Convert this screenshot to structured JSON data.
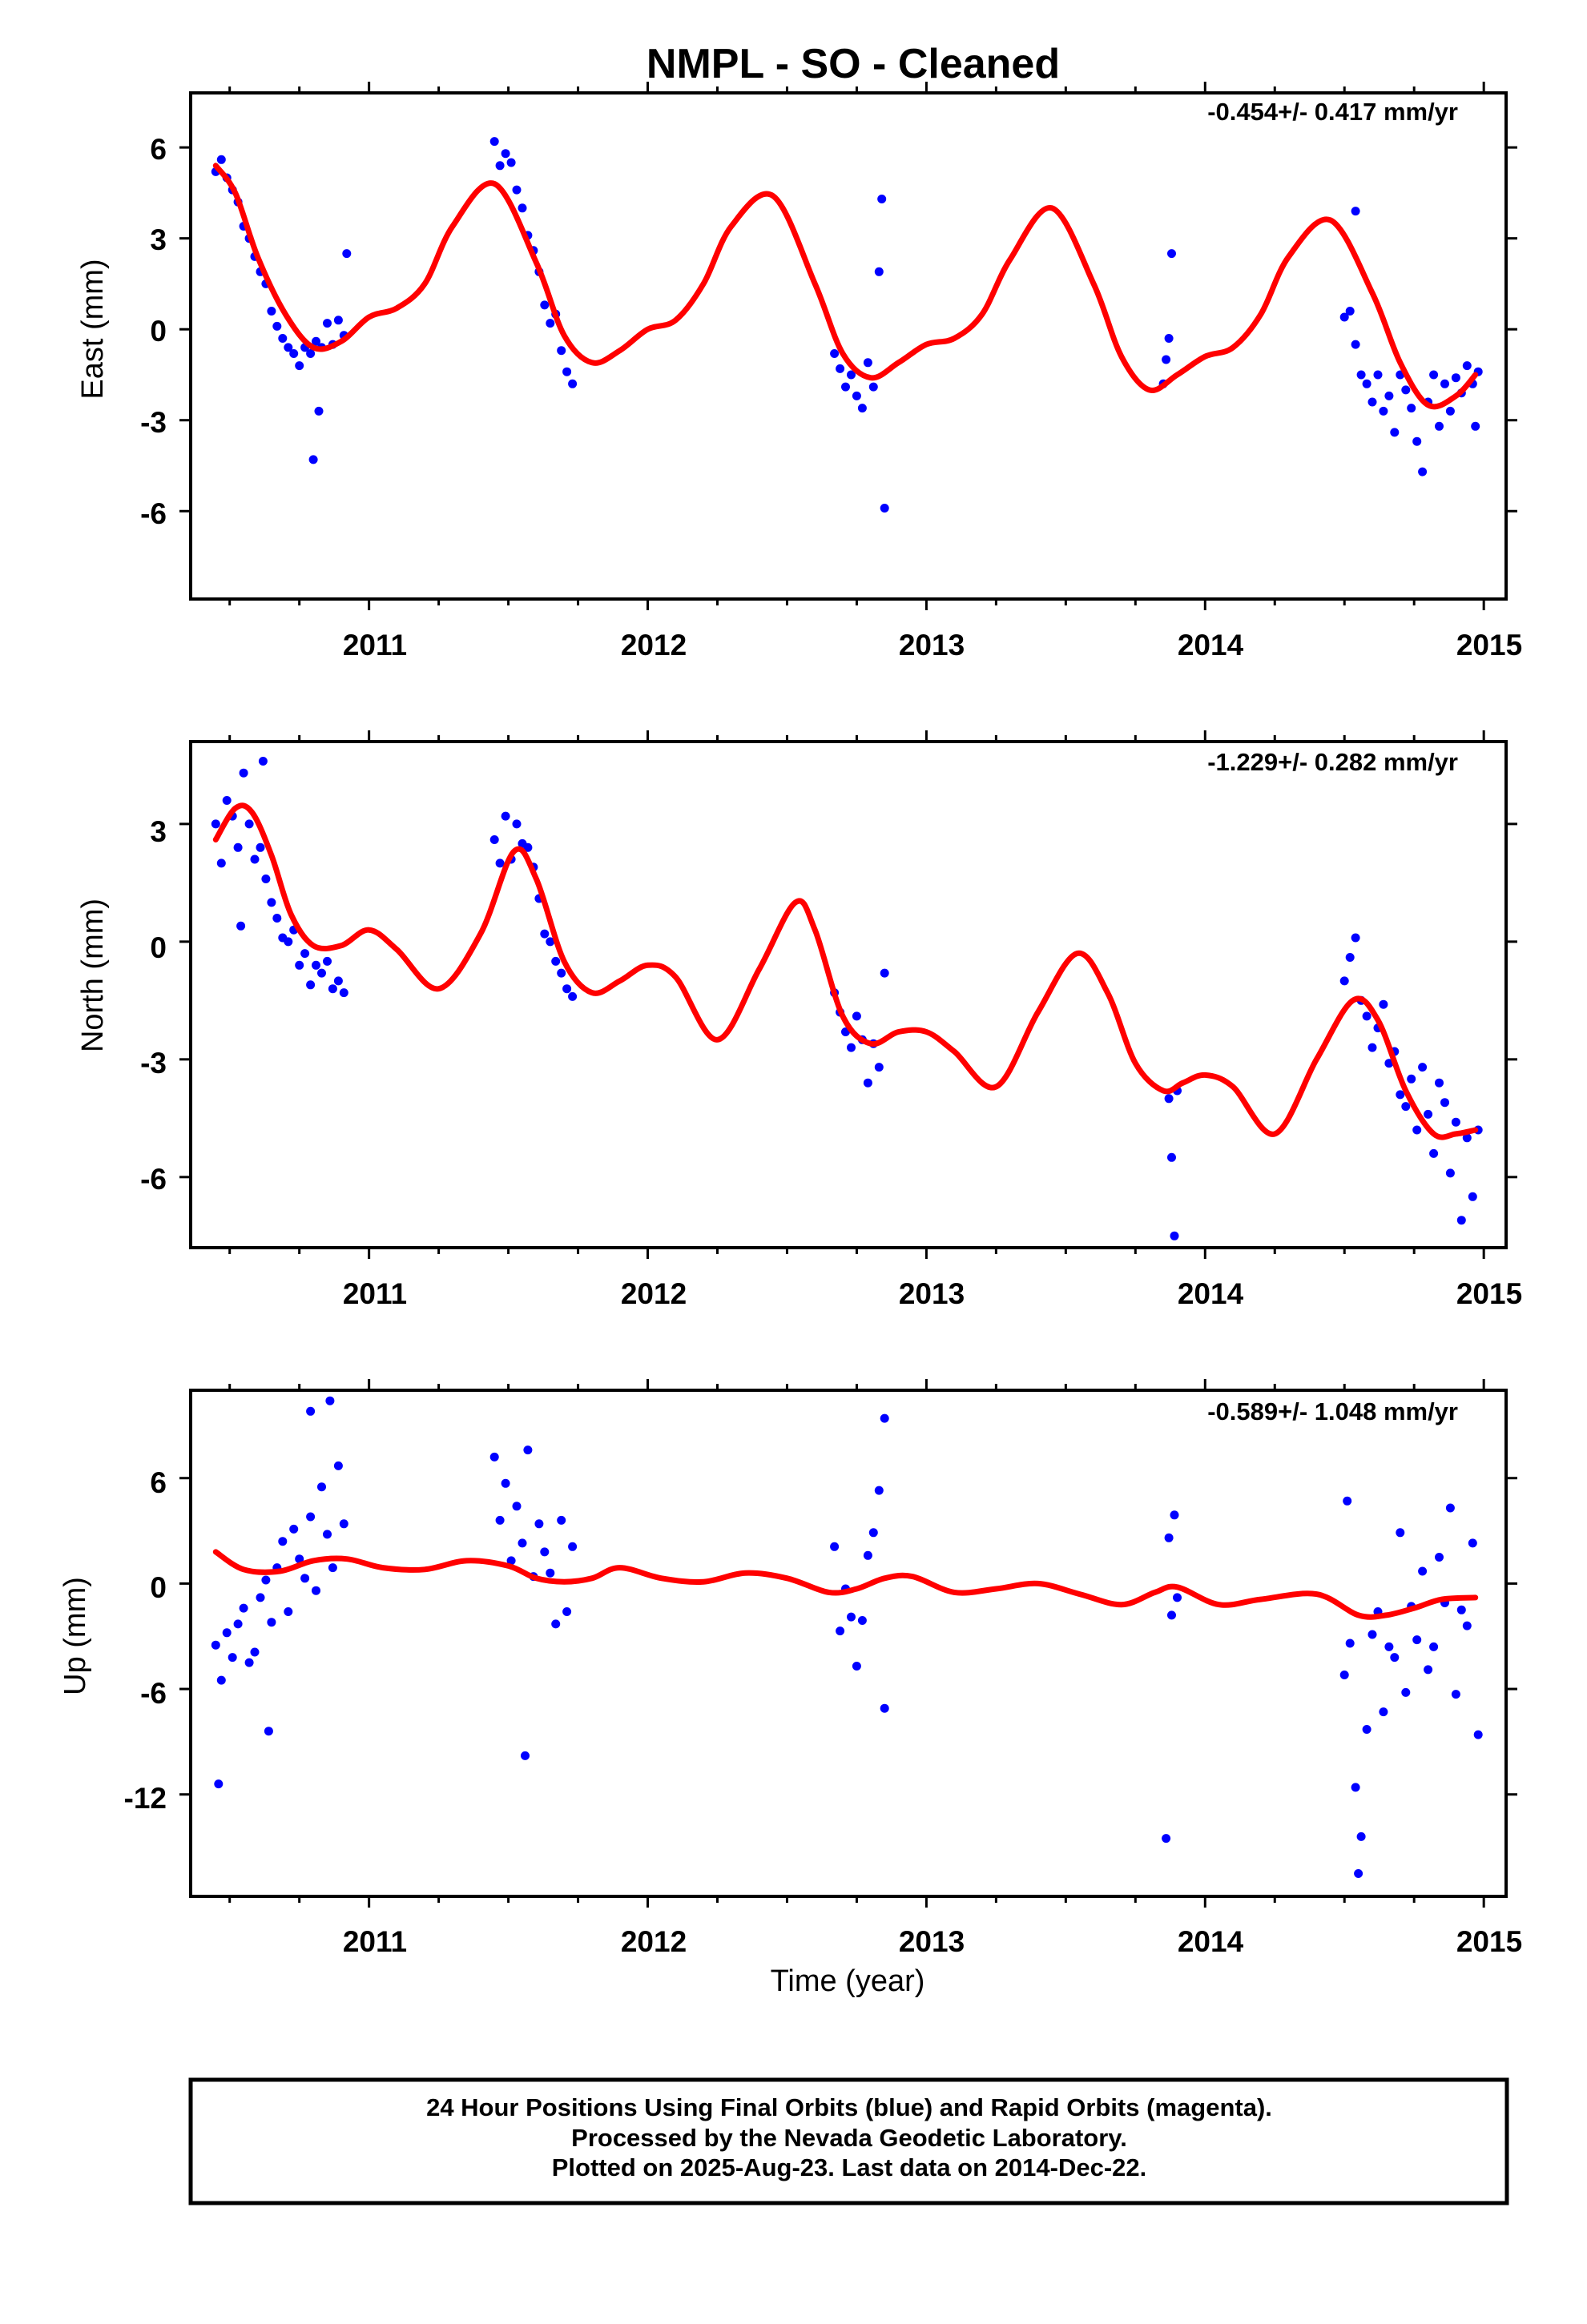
{
  "title": "NMPL  - SO - Cleaned",
  "xlabel": "Time (year)",
  "footer_lines": [
    "24 Hour Positions Using Final Orbits (blue) and Rapid Orbits (magenta).",
    "Processed by the Nevada Geodetic Laboratory.",
    "Plotted on 2025-Aug-23. Last data on 2014-Dec-22."
  ],
  "colors": {
    "points": "#0000ff",
    "fit": "#ff0000",
    "axes": "#000000"
  },
  "chart_data": [
    {
      "type": "scatter",
      "ylabel": "East (mm)",
      "rate": "-0.454+/- 0.417 mm/yr",
      "xlim": [
        2010.36,
        2015.08
      ],
      "ylim": [
        -8.9,
        7.8
      ],
      "xticks": [
        "2011",
        "2012",
        "2013",
        "2014",
        "2015"
      ],
      "yticks": [
        "6",
        "3",
        "0",
        "-3",
        "-6"
      ],
      "ytick_values": [
        6,
        3,
        0,
        -3,
        -6
      ],
      "grid": false,
      "fit": {
        "x": [
          2010.45,
          2010.52,
          2010.6,
          2010.7,
          2010.8,
          2010.9,
          2011.0,
          2011.1,
          2011.2,
          2011.3,
          2011.45,
          2011.6,
          2011.7,
          2011.8,
          2011.9,
          2012.0,
          2012.1,
          2012.2,
          2012.3,
          2012.45,
          2012.6,
          2012.7,
          2012.8,
          2012.9,
          2013.0,
          2013.1,
          2013.2,
          2013.3,
          2013.45,
          2013.6,
          2013.7,
          2013.8,
          2013.9,
          2014.0,
          2014.1,
          2014.2,
          2014.3,
          2014.45,
          2014.6,
          2014.7,
          2014.8,
          2014.9,
          2014.97
        ],
        "y": [
          5.4,
          4.5,
          2.4,
          0.5,
          -0.6,
          -0.4,
          0.4,
          0.7,
          1.5,
          3.4,
          4.8,
          2.2,
          -0.2,
          -1.1,
          -0.7,
          0.0,
          0.3,
          1.5,
          3.4,
          4.4,
          1.5,
          -0.8,
          -1.6,
          -1.1,
          -0.5,
          -0.3,
          0.5,
          2.3,
          4.0,
          1.5,
          -0.9,
          -2.0,
          -1.5,
          -0.9,
          -0.6,
          0.5,
          2.4,
          3.6,
          1.2,
          -1.1,
          -2.5,
          -2.2,
          -1.5
        ]
      },
      "points": {
        "x": [
          2010.45,
          2010.47,
          2010.49,
          2010.51,
          2010.53,
          2010.55,
          2010.57,
          2010.59,
          2010.61,
          2010.63,
          2010.65,
          2010.67,
          2010.69,
          2010.71,
          2010.73,
          2010.75,
          2010.77,
          2010.79,
          2010.81,
          2010.83,
          2010.85,
          2010.87,
          2010.89,
          2010.91,
          2010.8,
          2010.82,
          2010.92,
          2011.45,
          2011.47,
          2011.49,
          2011.51,
          2011.53,
          2011.55,
          2011.57,
          2011.59,
          2011.61,
          2011.63,
          2011.65,
          2011.67,
          2011.69,
          2011.71,
          2011.73,
          2012.67,
          2012.69,
          2012.71,
          2012.73,
          2012.75,
          2012.77,
          2012.79,
          2012.81,
          2012.83,
          2012.84,
          2012.85,
          2013.85,
          2013.86,
          2013.87,
          2013.88,
          2014.5,
          2014.52,
          2014.54,
          2014.56,
          2014.58,
          2014.6,
          2014.62,
          2014.64,
          2014.66,
          2014.68,
          2014.7,
          2014.72,
          2014.74,
          2014.76,
          2014.78,
          2014.8,
          2014.82,
          2014.84,
          2014.86,
          2014.88,
          2014.9,
          2014.92,
          2014.94,
          2014.96,
          2014.97,
          2014.98,
          2014.54
        ],
        "y": [
          5.2,
          5.6,
          5.0,
          4.6,
          4.2,
          3.4,
          3.0,
          2.4,
          1.9,
          1.5,
          0.6,
          0.1,
          -0.3,
          -0.6,
          -0.8,
          -1.2,
          -0.6,
          -0.8,
          -0.4,
          -0.6,
          0.2,
          -0.5,
          0.3,
          -0.2,
          -4.3,
          -2.7,
          2.5,
          6.2,
          5.4,
          5.8,
          5.5,
          4.6,
          4.0,
          3.1,
          2.6,
          1.9,
          0.8,
          0.2,
          0.5,
          -0.7,
          -1.4,
          -1.8,
          -0.8,
          -1.3,
          -1.9,
          -1.5,
          -2.2,
          -2.6,
          -1.1,
          -1.9,
          1.9,
          4.3,
          -5.9,
          -1.8,
          -1.0,
          -0.3,
          2.5,
          0.4,
          0.6,
          -0.5,
          -1.5,
          -1.8,
          -2.4,
          -1.5,
          -2.7,
          -2.2,
          -3.4,
          -1.5,
          -2.0,
          -2.6,
          -3.7,
          -4.7,
          -2.4,
          -1.5,
          -3.2,
          -1.8,
          -2.7,
          -1.6,
          -2.1,
          -1.2,
          -1.8,
          -3.2,
          -1.4,
          3.9
        ]
      }
    },
    {
      "type": "scatter",
      "ylabel": "North (mm)",
      "rate": "-1.229+/- 0.282 mm/yr",
      "xlim": [
        2010.36,
        2015.08
      ],
      "ylim": [
        -7.8,
        5.1
      ],
      "xticks": [
        "2011",
        "2012",
        "2013",
        "2014",
        "2015"
      ],
      "yticks": [
        "3",
        "0",
        "-3",
        "-6"
      ],
      "ytick_values": [
        3,
        0,
        -3,
        -6
      ],
      "grid": false,
      "fit": {
        "x": [
          2010.45,
          2010.52,
          2010.58,
          2010.65,
          2010.72,
          2010.8,
          2010.9,
          2011.0,
          2011.1,
          2011.25,
          2011.4,
          2011.52,
          2011.6,
          2011.7,
          2011.8,
          2011.9,
          2012.0,
          2012.1,
          2012.25,
          2012.4,
          2012.53,
          2012.6,
          2012.7,
          2012.8,
          2012.9,
          2013.0,
          2013.1,
          2013.25,
          2013.4,
          2013.54,
          2013.65,
          2013.75,
          2013.85,
          2013.92,
          2014.0,
          2014.1,
          2014.25,
          2014.4,
          2014.53,
          2014.62,
          2014.72,
          2014.82,
          2014.9,
          2014.97
        ],
        "y": [
          2.6,
          3.4,
          3.3,
          2.2,
          0.7,
          -0.1,
          -0.1,
          0.3,
          -0.2,
          -1.2,
          0.2,
          2.3,
          1.6,
          -0.5,
          -1.3,
          -1.0,
          -0.6,
          -0.9,
          -2.5,
          -0.7,
          1.0,
          0.3,
          -1.9,
          -2.6,
          -2.3,
          -2.3,
          -2.8,
          -3.7,
          -1.8,
          -0.3,
          -1.3,
          -3.1,
          -3.8,
          -3.6,
          -3.4,
          -3.7,
          -4.9,
          -3.0,
          -1.5,
          -2.0,
          -3.8,
          -4.9,
          -4.9,
          -4.8
        ]
      },
      "points": {
        "x": [
          2010.45,
          2010.47,
          2010.49,
          2010.51,
          2010.53,
          2010.55,
          2010.57,
          2010.59,
          2010.61,
          2010.63,
          2010.65,
          2010.67,
          2010.69,
          2010.71,
          2010.73,
          2010.75,
          2010.77,
          2010.79,
          2010.81,
          2010.83,
          2010.85,
          2010.87,
          2010.89,
          2010.91,
          2010.54,
          2010.62,
          2011.45,
          2011.47,
          2011.49,
          2011.51,
          2011.53,
          2011.55,
          2011.57,
          2011.59,
          2011.61,
          2011.63,
          2011.65,
          2011.67,
          2011.69,
          2011.71,
          2011.73,
          2012.67,
          2012.69,
          2012.71,
          2012.73,
          2012.75,
          2012.77,
          2012.79,
          2012.81,
          2012.83,
          2012.85,
          2013.87,
          2013.88,
          2013.89,
          2013.9,
          2014.5,
          2014.52,
          2014.54,
          2014.56,
          2014.58,
          2014.6,
          2014.62,
          2014.64,
          2014.66,
          2014.68,
          2014.7,
          2014.72,
          2014.74,
          2014.76,
          2014.78,
          2014.8,
          2014.82,
          2014.84,
          2014.86,
          2014.88,
          2014.9,
          2014.92,
          2014.94,
          2014.96,
          2014.98
        ],
        "y": [
          3.0,
          2.0,
          3.6,
          3.2,
          2.4,
          4.3,
          3.0,
          2.1,
          2.4,
          1.6,
          1.0,
          0.6,
          0.1,
          0.0,
          0.3,
          -0.6,
          -0.3,
          -1.1,
          -0.6,
          -0.8,
          -0.5,
          -1.2,
          -1.0,
          -1.3,
          0.4,
          4.6,
          2.6,
          2.0,
          3.2,
          2.1,
          3.0,
          2.5,
          2.4,
          1.9,
          1.1,
          0.2,
          0.0,
          -0.5,
          -0.8,
          -1.2,
          -1.4,
          -1.3,
          -1.8,
          -2.3,
          -2.7,
          -1.9,
          -2.5,
          -3.6,
          -2.6,
          -3.2,
          -0.8,
          -4.0,
          -5.5,
          -7.5,
          -3.8,
          -1.0,
          -0.4,
          0.1,
          -1.5,
          -1.9,
          -2.7,
          -2.2,
          -1.6,
          -3.1,
          -2.8,
          -3.9,
          -4.2,
          -3.5,
          -4.8,
          -3.2,
          -4.4,
          -5.4,
          -3.6,
          -4.1,
          -5.9,
          -4.6,
          -7.1,
          -5.0,
          -6.5,
          -4.8
        ]
      }
    },
    {
      "type": "scatter",
      "ylabel": "Up (mm)",
      "rate": "-0.589+/- 1.048 mm/yr",
      "xlim": [
        2010.36,
        2015.08
      ],
      "ylim": [
        -17.8,
        11.0
      ],
      "xticks": [
        "2011",
        "2012",
        "2013",
        "2014",
        "2015"
      ],
      "yticks": [
        "6",
        "0",
        "-6",
        "-12"
      ],
      "ytick_values": [
        6,
        0,
        -6,
        -12
      ],
      "grid": false,
      "fit": {
        "x": [
          2010.45,
          2010.55,
          2010.68,
          2010.8,
          2010.92,
          2011.05,
          2011.2,
          2011.35,
          2011.5,
          2011.6,
          2011.7,
          2011.8,
          2011.9,
          2012.05,
          2012.2,
          2012.35,
          2012.5,
          2012.65,
          2012.75,
          2012.85,
          2012.95,
          2013.1,
          2013.25,
          2013.4,
          2013.55,
          2013.7,
          2013.82,
          2013.9,
          2014.05,
          2014.2,
          2014.4,
          2014.55,
          2014.65,
          2014.75,
          2014.85,
          2014.97
        ],
        "y": [
          1.8,
          0.8,
          0.7,
          1.3,
          1.4,
          0.9,
          0.8,
          1.3,
          1.0,
          0.3,
          0.1,
          0.3,
          0.9,
          0.3,
          0.1,
          0.6,
          0.3,
          -0.5,
          -0.3,
          0.3,
          0.4,
          -0.5,
          -0.3,
          0.0,
          -0.6,
          -1.2,
          -0.5,
          -0.2,
          -1.2,
          -0.9,
          -0.6,
          -1.8,
          -1.8,
          -1.4,
          -0.9,
          -0.8
        ]
      },
      "points": {
        "x": [
          2010.45,
          2010.47,
          2010.49,
          2010.51,
          2010.53,
          2010.55,
          2010.57,
          2010.59,
          2010.61,
          2010.63,
          2010.65,
          2010.67,
          2010.69,
          2010.71,
          2010.73,
          2010.75,
          2010.77,
          2010.79,
          2010.81,
          2010.83,
          2010.85,
          2010.87,
          2010.89,
          2010.91,
          2010.46,
          2010.64,
          2010.79,
          2010.86,
          2011.45,
          2011.47,
          2011.49,
          2011.51,
          2011.53,
          2011.55,
          2011.57,
          2011.59,
          2011.61,
          2011.63,
          2011.65,
          2011.67,
          2011.69,
          2011.71,
          2011.73,
          2011.56,
          2012.67,
          2012.69,
          2012.71,
          2012.73,
          2012.75,
          2012.77,
          2012.79,
          2012.81,
          2012.83,
          2012.85,
          2012.85,
          2013.86,
          2013.87,
          2013.88,
          2013.89,
          2013.9,
          2014.5,
          2014.52,
          2014.54,
          2014.56,
          2014.58,
          2014.6,
          2014.62,
          2014.64,
          2014.66,
          2014.68,
          2014.7,
          2014.72,
          2014.74,
          2014.76,
          2014.78,
          2014.8,
          2014.82,
          2014.84,
          2014.86,
          2014.88,
          2014.9,
          2014.92,
          2014.94,
          2014.96,
          2014.98,
          2014.51,
          2014.55
        ],
        "y": [
          -3.5,
          -5.5,
          -2.8,
          -4.2,
          -2.3,
          -1.4,
          -4.5,
          -3.9,
          -0.8,
          0.2,
          -2.2,
          0.9,
          2.4,
          -1.6,
          3.1,
          1.4,
          0.3,
          3.8,
          -0.4,
          5.5,
          2.8,
          0.9,
          6.7,
          3.4,
          -11.4,
          -8.4,
          9.8,
          10.4,
          7.2,
          3.6,
          5.7,
          1.3,
          4.4,
          2.3,
          7.6,
          0.4,
          3.4,
          1.8,
          0.6,
          -2.3,
          3.6,
          -1.6,
          2.1,
          -9.8,
          2.1,
          -2.7,
          -0.3,
          -1.9,
          -4.7,
          -2.1,
          1.6,
          2.9,
          5.3,
          9.4,
          -7.1,
          -14.5,
          2.6,
          -1.8,
          3.9,
          -0.8,
          -5.2,
          -3.4,
          -11.6,
          -14.4,
          -8.3,
          -2.9,
          -1.6,
          -7.3,
          -3.6,
          -4.2,
          2.9,
          -6.2,
          -1.3,
          -3.2,
          0.7,
          -4.9,
          -3.6,
          1.5,
          -1.1,
          4.3,
          -6.3,
          -1.5,
          -2.4,
          2.3,
          -8.6,
          4.7,
          -16.5
        ]
      }
    }
  ]
}
